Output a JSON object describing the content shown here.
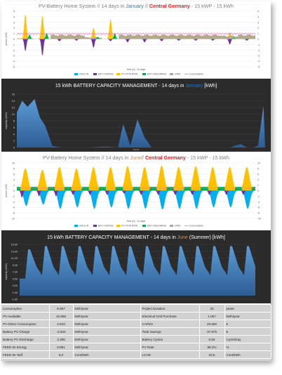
{
  "charts": [
    {
      "title_parts": [
        {
          "text": "PV-Battery Home System // 14 days in ",
          "color": "#7f7f7f",
          "bold": false
        },
        {
          "text": "January",
          "color": "#2e75b6",
          "bold": false
        },
        {
          "text": " // ",
          "color": "#7f7f7f",
          "bold": false
        },
        {
          "text": "Central Germany",
          "color": "#e81c1c",
          "bold": true
        },
        {
          "text": " - 15 kWP - 15 kWh",
          "color": "#7f7f7f",
          "bold": false
        }
      ],
      "ylabel": "power (kW)",
      "xlabel": "time (h) / 14 days",
      "legend": [
        "FEED IN",
        "BAT CHARGE",
        "PV POTENTIAL",
        "BAT DISCHARGE",
        "GRID",
        "Consumption"
      ]
    },
    {
      "title_parts": [
        {
          "text": "15 kWh BATTERY CAPACITY MANAGEMENT - 14 days in ",
          "color": "#ffffff",
          "bold": false
        },
        {
          "text": "January",
          "color": "#2e75b6",
          "bold": false
        },
        {
          "text": " [kWh]",
          "color": "#ffffff",
          "bold": false
        }
      ],
      "ylabel": "capacity (kWh)",
      "xlabel": "Zeit (h)"
    },
    {
      "title_parts": [
        {
          "text": "PV-Battery Home System // 14 days in ",
          "color": "#7f7f7f",
          "bold": false
        },
        {
          "text": "June",
          "color": "#ed7d31",
          "bold": false
        },
        {
          "text": "// ",
          "color": "#7f7f7f",
          "bold": false
        },
        {
          "text": "Central Germany",
          "color": "#e81c1c",
          "bold": true
        },
        {
          "text": " - 15 kWP - 15 kWh",
          "color": "#7f7f7f",
          "bold": false
        }
      ],
      "ylabel": "power (kW)",
      "xlabel": "time (h) / 14 days",
      "legend": [
        "FEED IN",
        "BAT CHARGE",
        "PV POTENTIAL",
        "BAT DISCHARGE",
        "GRID",
        "Consumption"
      ]
    },
    {
      "title_parts": [
        {
          "text": "15 kWh BATTERY CAPACITY MANAGEMENT - 14 days in ",
          "color": "#ffffff",
          "bold": false
        },
        {
          "text": "June",
          "color": "#ed7d31",
          "bold": false
        },
        {
          "text": " (Summer)  [kWh]",
          "color": "#ffffff",
          "bold": false
        }
      ],
      "ylabel": "capacity (kWh)",
      "xlabel": ""
    }
  ],
  "chart_data": [
    {
      "type": "area",
      "title": "PV-Battery Home System // 14 days in January // Central Germany - 15 kWP - 15 kWh",
      "xlabel": "time (h) / 14 days",
      "ylabel": "power (kW)",
      "ylim": [
        -5,
        5
      ],
      "yticks": [
        5,
        4,
        3,
        2,
        1,
        0,
        -1,
        -2,
        -3,
        -4,
        -5
      ],
      "x": [
        0,
        1,
        2,
        3,
        4,
        5,
        6,
        7,
        8,
        9,
        10,
        11,
        12,
        13,
        14
      ],
      "series": [
        {
          "name": "FEED IN",
          "values": [
            0.3,
            0,
            0,
            0,
            0,
            0,
            0,
            0,
            0,
            0,
            0,
            0,
            0,
            0,
            0.3
          ]
        },
        {
          "name": "BAT CHARGE",
          "values": [
            -2.2,
            -3.0,
            -0.4,
            -0.3,
            -1.6,
            -0.4,
            -0.6,
            -0.6,
            -0.4,
            -0.3,
            -0.3,
            -0.3,
            -1.0,
            -0.3,
            -2.6
          ]
        },
        {
          "name": "PV POTENTIAL",
          "values": [
            4.4,
            4.2,
            0.8,
            0.3,
            2.0,
            3.6,
            0.4,
            0.4,
            0.3,
            0.3,
            0.3,
            0.3,
            1.2,
            0.3,
            4.2
          ]
        },
        {
          "name": "BAT DISCHARGE",
          "values": [
            0.8,
            1.0,
            0,
            0,
            0.4,
            1.0,
            0,
            0,
            0,
            0,
            0,
            0,
            0.2,
            0,
            0.8
          ]
        },
        {
          "name": "GRID",
          "values": [
            0.1,
            0,
            0.8,
            0.8,
            0.3,
            0,
            0.8,
            0.8,
            0.8,
            0.8,
            0.8,
            0.8,
            0.6,
            0.8,
            0.1
          ]
        },
        {
          "name": "Consumption",
          "values": [
            0.9,
            0.9,
            0.9,
            0.9,
            0.9,
            0.9,
            0.9,
            0.9,
            0.9,
            0.9,
            0.9,
            0.9,
            0.9,
            0.9,
            0.9
          ]
        }
      ]
    },
    {
      "type": "area",
      "title": "15 kWh BATTERY CAPACITY MANAGEMENT - 14 days in January [kWh]",
      "ylabel": "capacity (kWh)",
      "ylim": [
        0,
        16
      ],
      "yticks": [
        16,
        14,
        12,
        10,
        8,
        6,
        4,
        2,
        0
      ],
      "x": [
        0,
        0.3,
        0.6,
        1.0,
        1.3,
        1.6,
        2.0,
        2.5,
        3.0,
        4.0,
        5.0,
        5.7,
        6.0,
        6.4,
        6.8,
        7.2,
        7.6,
        8.2,
        8.6,
        9.0,
        9.6,
        10.4,
        11.2,
        12.0,
        12.6,
        13.0,
        13.3,
        13.6,
        13.9,
        14.0
      ],
      "series": [
        {
          "name": "capacity",
          "values": [
            10.5,
            14.0,
            12.2,
            14.5,
            9.0,
            6.5,
            0.5,
            0,
            0,
            0,
            0.3,
            0,
            7.0,
            0.5,
            8.4,
            3.0,
            0,
            0,
            0,
            0,
            0,
            0,
            0,
            0,
            1.0,
            0,
            0,
            0.5,
            12.5,
            0
          ]
        }
      ]
    },
    {
      "type": "area",
      "title": "PV-Battery Home System // 14 days in June// Central Germany - 15 kWP - 15 kWh",
      "xlabel": "time (h) / 14 days",
      "ylabel": "power (kW)",
      "ylim": [
        -10,
        10
      ],
      "yticks": [
        10,
        8,
        6,
        4,
        2,
        0,
        -2,
        -4,
        -6,
        -8,
        -10
      ],
      "days": 14,
      "series": [
        {
          "name": "FEED IN",
          "values": [
            -5.5,
            -5,
            -6.5,
            -6,
            -6.5,
            -6,
            -6.5,
            -6.5,
            -6.8,
            -6.5,
            -6.5,
            -6,
            -6,
            -6.5
          ]
        },
        {
          "name": "BAT CHARGE",
          "values": [
            -2.5,
            -2,
            -2,
            -1.5,
            -1.5,
            -1.5,
            -1,
            -1.5,
            -1.5,
            -1.5,
            -1.5,
            -1.5,
            -1.5,
            -1.5
          ]
        },
        {
          "name": "PV POTENTIAL",
          "values": [
            8,
            7.5,
            8.5,
            8,
            8.5,
            8.5,
            8.8,
            8.5,
            9,
            8.5,
            8.8,
            8.5,
            8.5,
            8.5
          ]
        },
        {
          "name": "BAT DISCHARGE",
          "values": [
            1.5,
            1.5,
            1.5,
            1.5,
            1.5,
            1.5,
            1.5,
            1.5,
            1.5,
            1.5,
            1.5,
            1.5,
            1.5,
            1.5
          ]
        },
        {
          "name": "GRID",
          "values": [
            0.2,
            0.2,
            0.2,
            0.2,
            0.2,
            0.2,
            0.2,
            0.2,
            0.2,
            0.2,
            0.2,
            0.2,
            0.2,
            0.2
          ]
        },
        {
          "name": "Consumption",
          "values": [
            0.9,
            0.9,
            0.9,
            0.9,
            0.9,
            0.9,
            0.9,
            0.9,
            0.9,
            0.9,
            0.9,
            0.9,
            0.9,
            0.9
          ]
        }
      ]
    },
    {
      "type": "area",
      "title": "15 kWh BATTERY CAPACITY MANAGEMENT - 14 days in June (Summer) [kWh]",
      "ylabel": "capacity (kWh)",
      "ylim": [
        -1,
        15
      ],
      "yticks": [
        "15,00",
        "13,00",
        "11,00",
        "9,00",
        "7,00",
        "5,00",
        "3,00",
        "1,00",
        "-1,00"
      ],
      "days": 14,
      "series": [
        {
          "name": "capacity",
          "day_max": [
            13.5,
            14.5,
            14.5,
            14.5,
            14.5,
            14.5,
            14.5,
            14.5,
            14.5,
            14.5,
            14.5,
            14.5,
            14.5,
            14.5
          ],
          "day_min": [
            5.0,
            6.0,
            6.0,
            6.0,
            6.0,
            6.0,
            6.0,
            6.0,
            6.0,
            6.0,
            6.0,
            6.0,
            6.0,
            6.0
          ]
        }
      ]
    }
  ],
  "summary_table": [
    [
      "Consumption",
      "8.957",
      "kWh/year",
      "Project Duration",
      "20",
      "years"
    ],
    [
      "PV Available",
      "16.866",
      "kWh/year",
      "Electrical Grid Purchase",
      "1.057",
      "kWh/year"
    ],
    [
      "PV Direct Consumption",
      "4.615",
      "kWh/year",
      "CAPEX",
      "29.550",
      "€"
    ],
    [
      "Battery PV Charge",
      "-3.633",
      "kWh/year",
      "Total Savings",
      "37.675",
      "€"
    ],
    [
      "Battery PV Discharge",
      "3.285",
      "kWh/year",
      "Battery Cycles",
      "0,84",
      "Cycle/Day"
    ],
    [
      "FEED-IN Energy",
      "8.981",
      "kWh/year",
      "PV Rate",
      "88,2%",
      "%"
    ],
    [
      "FEED-IN Tarif",
      "5,0",
      "Cent/kWh",
      "LCOE",
      "20,5",
      "Cent/kWh"
    ]
  ],
  "colors": {
    "feed_in": "#00b0f0",
    "bat_charge": "#7030a0",
    "pv_potential": "#ffc000",
    "bat_discharge": "#00b050",
    "grid": "#a6a6a6",
    "consumption": "#ff66cc",
    "capacity": "#4a8ad4",
    "dark_panel": "#2b2b2b"
  }
}
